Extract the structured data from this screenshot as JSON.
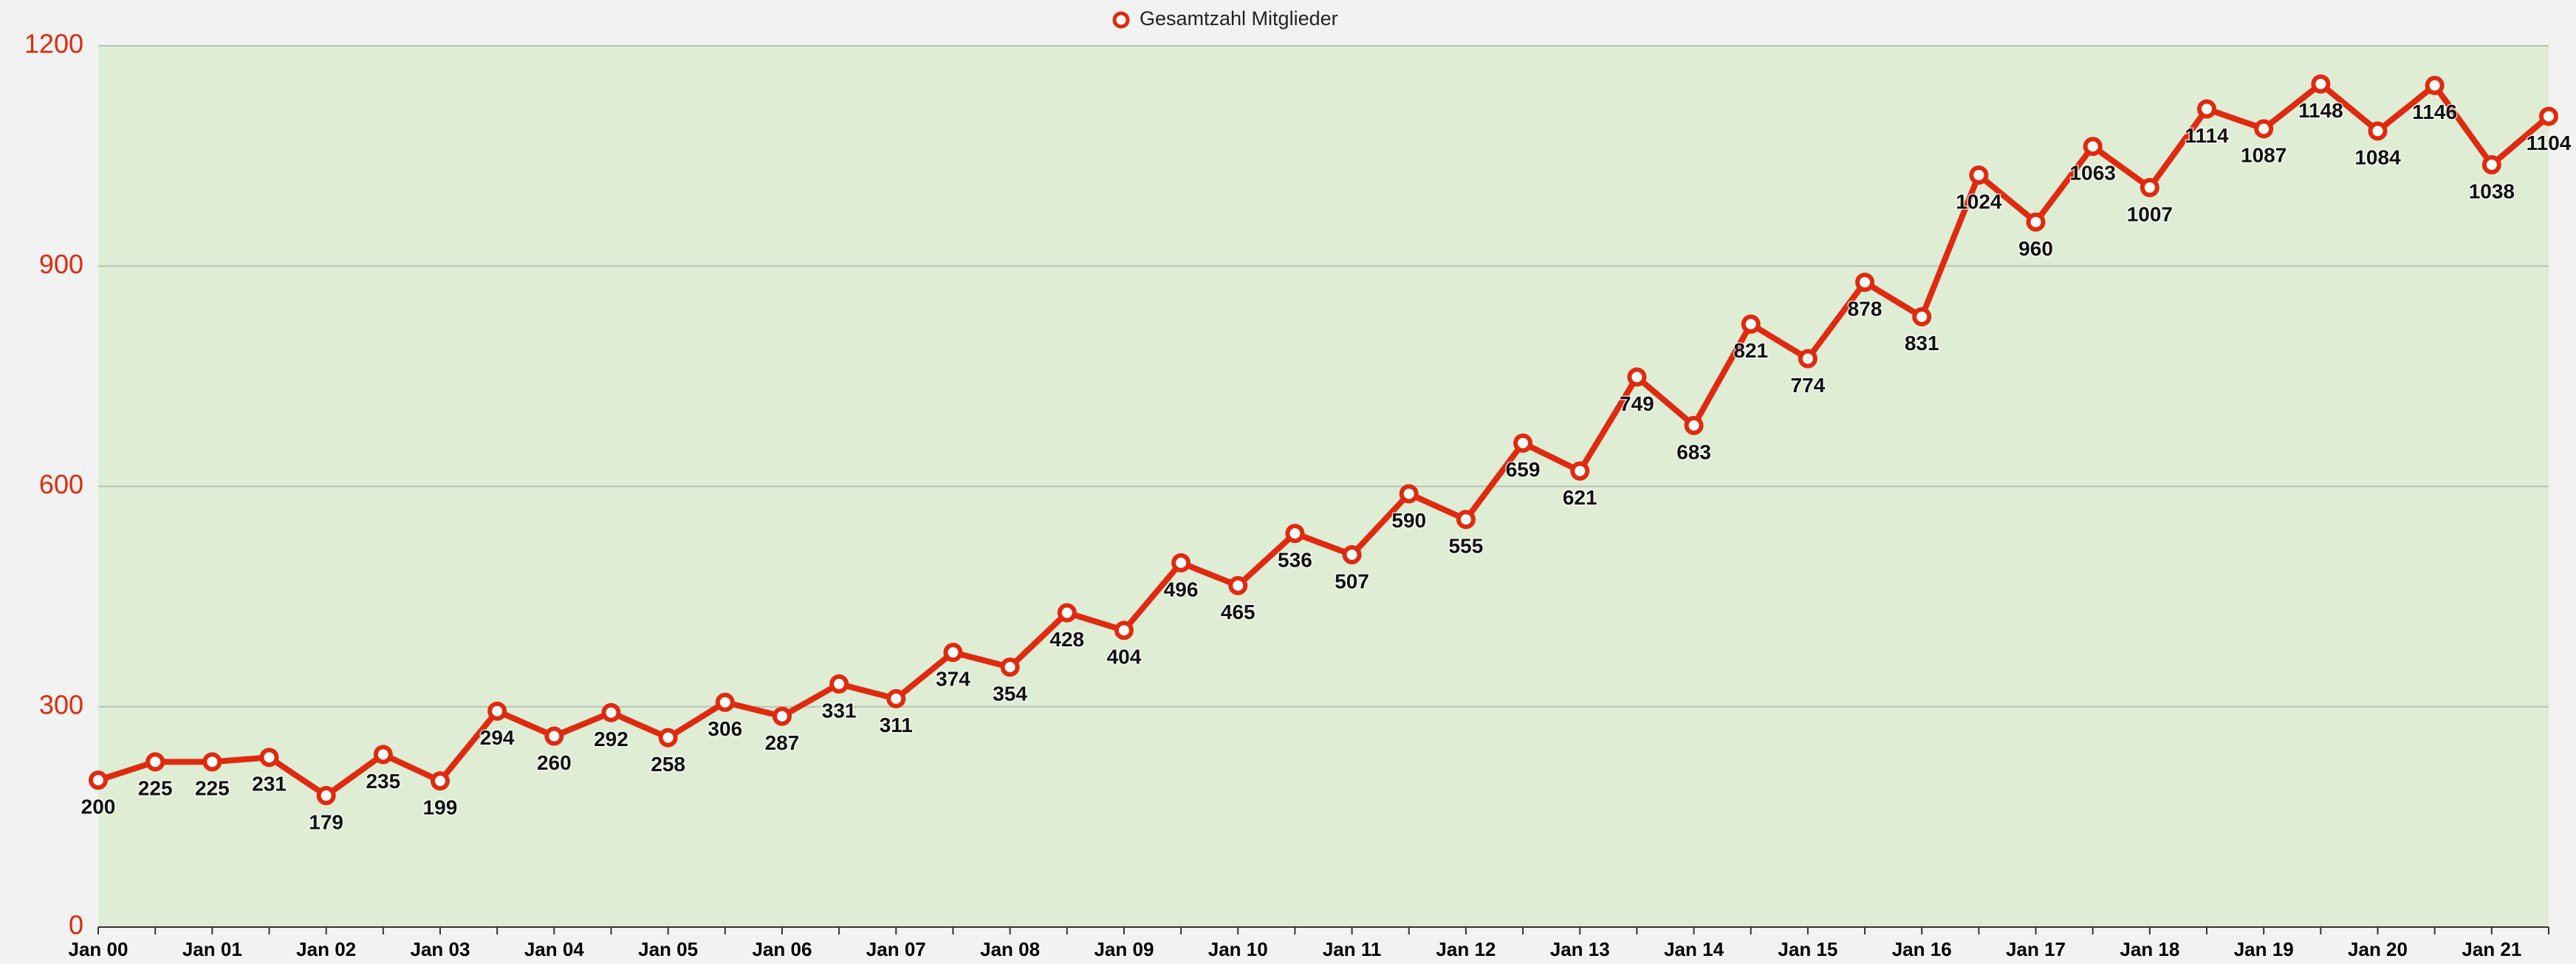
{
  "chart_data": {
    "type": "line",
    "categories": [
      "Jan 00",
      null,
      "Jan 01",
      null,
      "Jan 02",
      null,
      "Jan 03",
      null,
      "Jan 04",
      null,
      "Jan 05",
      null,
      "Jan 06",
      null,
      "Jan 07",
      null,
      "Jan 08",
      null,
      "Jan 09",
      null,
      "Jan 10",
      null,
      "Jan 11",
      null,
      "Jan 12",
      null,
      "Jan 13",
      null,
      "Jan 14",
      null,
      "Jan 15",
      null,
      "Jan 16",
      null,
      "Jan 17",
      null,
      "Jan 18",
      null,
      "Jan 19",
      null,
      "Jan 20",
      null,
      "Jan 21",
      null
    ],
    "series": [
      {
        "name": "Gesamtzahl Mitglieder",
        "color": "#e02a0f",
        "values": [
          200,
          225,
          225,
          231,
          179,
          235,
          199,
          294,
          260,
          292,
          258,
          306,
          287,
          331,
          311,
          374,
          354,
          428,
          404,
          496,
          465,
          536,
          507,
          590,
          555,
          659,
          621,
          749,
          683,
          821,
          774,
          878,
          831,
          1024,
          960,
          1063,
          1007,
          1114,
          1087,
          1148,
          1084,
          1146,
          1038,
          1104
        ]
      }
    ],
    "ylim": [
      0,
      1200
    ],
    "yticks": [
      0,
      300,
      600,
      900,
      1200
    ],
    "grid": true,
    "legend": "top"
  }
}
